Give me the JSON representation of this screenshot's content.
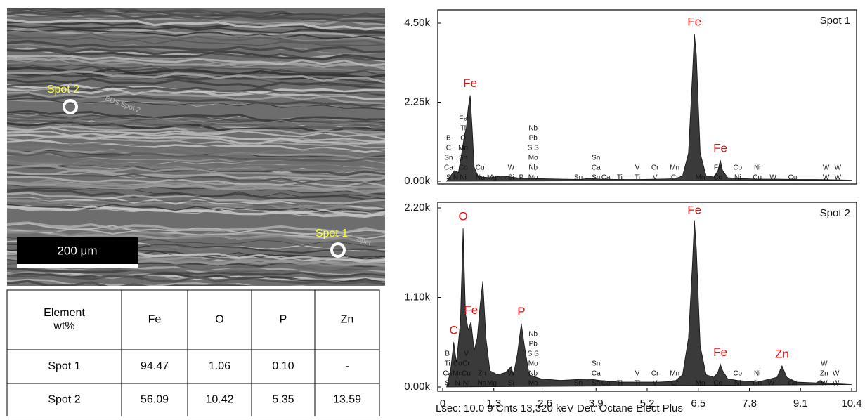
{
  "image": {
    "labels": [
      "Spot 2",
      "Spot 1"
    ],
    "faint_labels": [
      "EDS Spot 2",
      "Spot"
    ],
    "scale_bar": "200 μm"
  },
  "table": {
    "header": [
      "Element wt%",
      "Fe",
      "O",
      "P",
      "Zn"
    ],
    "rows": [
      [
        "Spot 1",
        "94.47",
        "1.06",
        "0.10",
        "-"
      ],
      [
        "Spot 2",
        "56.09",
        "10.42",
        "5.35",
        "13.59"
      ]
    ]
  },
  "footer": "Lsec: 10.0  9 Cnts  13,320 keV  Det: Octane Elect Plus",
  "chart_data": [
    {
      "type": "area",
      "title": "Spot 1",
      "color": "#3a3a3a",
      "x": [
        0.1,
        0.2,
        0.3,
        0.4,
        0.5,
        0.55,
        0.6,
        0.65,
        0.7,
        0.75,
        0.8,
        0.9,
        1.0,
        1.2,
        1.5,
        1.75,
        2.0,
        2.3,
        2.6,
        3.0,
        3.5,
        3.7,
        4.0,
        4.5,
        5.0,
        5.5,
        5.9,
        6.1,
        6.25,
        6.35,
        6.4,
        6.45,
        6.55,
        6.7,
        6.9,
        7.0,
        7.06,
        7.12,
        7.25,
        7.5,
        8.0,
        8.5,
        9.0,
        9.5,
        10.0,
        10.4
      ],
      "values": [
        0,
        150,
        300,
        250,
        900,
        1300,
        1500,
        2100,
        2450,
        1500,
        400,
        150,
        120,
        100,
        150,
        120,
        80,
        80,
        70,
        60,
        50,
        80,
        60,
        50,
        50,
        60,
        70,
        150,
        800,
        3000,
        4200,
        3600,
        800,
        150,
        120,
        300,
        600,
        300,
        100,
        80,
        60,
        60,
        50,
        50,
        40,
        30
      ],
      "xlim": [
        0,
        10.4
      ],
      "ylim": [
        0,
        4500
      ],
      "yticks": [
        {
          "value": 0,
          "label": "0.00k"
        },
        {
          "value": 2250,
          "label": "2.25k"
        },
        {
          "value": 4500,
          "label": "4.50k"
        }
      ],
      "peak_labels": [
        {
          "text": "Fe",
          "x": 0.7
        },
        {
          "text": "Fe",
          "x": 6.4
        },
        {
          "text": "Fe",
          "x": 7.06
        }
      ],
      "annotations": [
        {
          "x": 0.15,
          "labels": [
            "S",
            "Ca",
            "Sn",
            "C",
            "B"
          ]
        },
        {
          "x": 0.33,
          "labels": [
            "N"
          ]
        },
        {
          "x": 0.52,
          "labels": [
            "Ni",
            "Co",
            "Sn",
            "Mn",
            "O",
            "Ti",
            "Fe"
          ]
        },
        {
          "x": 0.95,
          "labels": [
            "Na",
            "Cu"
          ]
        },
        {
          "x": 1.25,
          "labels": [
            "Mg"
          ]
        },
        {
          "x": 1.74,
          "labels": [
            "Si",
            "W"
          ]
        },
        {
          "x": 2.0,
          "labels": [
            "P"
          ]
        },
        {
          "x": 2.3,
          "labels": [
            "Mo",
            "Nb",
            "Mo",
            "S S",
            "Pb",
            "Nb"
          ]
        },
        {
          "x": 3.45,
          "labels": [
            "Sn"
          ]
        },
        {
          "x": 3.9,
          "labels": [
            "Sn",
            "Ca",
            "Sn"
          ]
        },
        {
          "x": 4.15,
          "labels": [
            "Ca"
          ]
        },
        {
          "x": 4.5,
          "labels": [
            "Ti"
          ]
        },
        {
          "x": 4.95,
          "labels": [
            "Ti",
            "V"
          ]
        },
        {
          "x": 5.4,
          "labels": [
            "V",
            "Cr"
          ]
        },
        {
          "x": 5.9,
          "labels": [
            "Cr",
            "Mn"
          ]
        },
        {
          "x": 6.55,
          "labels": [
            "Mn"
          ]
        },
        {
          "x": 7.0,
          "labels": [
            "Co",
            "Fe"
          ]
        },
        {
          "x": 7.5,
          "labels": [
            "Ni",
            "Co"
          ]
        },
        {
          "x": 8.0,
          "labels": [
            "Cu",
            "Ni"
          ]
        },
        {
          "x": 8.4,
          "labels": [
            "W"
          ]
        },
        {
          "x": 8.9,
          "labels": [
            "Cu"
          ]
        },
        {
          "x": 9.75,
          "labels": [
            "W",
            "W"
          ]
        },
        {
          "x": 10.05,
          "labels": [
            "W",
            "W"
          ]
        }
      ]
    },
    {
      "type": "area",
      "title": "Spot 2",
      "color": "#3a3a3a",
      "x": [
        0.1,
        0.2,
        0.28,
        0.35,
        0.45,
        0.52,
        0.58,
        0.65,
        0.72,
        0.8,
        0.88,
        0.95,
        1.02,
        1.1,
        1.2,
        1.4,
        1.6,
        1.74,
        1.8,
        1.9,
        2.0,
        2.08,
        2.2,
        2.5,
        3.0,
        3.7,
        4.0,
        4.5,
        5.0,
        5.5,
        5.9,
        6.1,
        6.25,
        6.35,
        6.4,
        6.45,
        6.55,
        6.7,
        6.9,
        7.0,
        7.06,
        7.12,
        7.25,
        7.5,
        8.0,
        8.5,
        8.63,
        8.75,
        9.0,
        9.5,
        9.6,
        9.7,
        10.0,
        10.4
      ],
      "values": [
        0,
        200,
        550,
        300,
        800,
        1950,
        900,
        700,
        800,
        450,
        600,
        1000,
        1300,
        600,
        200,
        150,
        180,
        250,
        150,
        400,
        780,
        500,
        150,
        100,
        80,
        100,
        80,
        60,
        60,
        60,
        70,
        150,
        600,
        1500,
        2050,
        1700,
        500,
        150,
        120,
        180,
        280,
        200,
        100,
        80,
        60,
        120,
        260,
        120,
        60,
        50,
        80,
        50,
        40,
        30
      ],
      "xlim": [
        0,
        10.4
      ],
      "ylim": [
        0,
        2200
      ],
      "yticks": [
        {
          "value": 0,
          "label": "0.00k"
        },
        {
          "value": 1100,
          "label": "1.10k"
        },
        {
          "value": 2200,
          "label": "2.20k"
        }
      ],
      "xticks": [
        0,
        1.3,
        2.6,
        3.9,
        5.2,
        6.5,
        7.8,
        9.1,
        10.4
      ],
      "peak_labels": [
        {
          "text": "C",
          "x": 0.28
        },
        {
          "text": "O",
          "x": 0.52
        },
        {
          "text": "Fe",
          "x": 0.72
        },
        {
          "text": "P",
          "x": 2.0
        },
        {
          "text": "Fe",
          "x": 6.4
        },
        {
          "text": "Fe",
          "x": 7.06
        },
        {
          "text": "Zn",
          "x": 8.63
        }
      ],
      "annotations": [
        {
          "x": 0.12,
          "labels": [
            "S",
            "Ca",
            "Ti",
            "B"
          ]
        },
        {
          "x": 0.38,
          "labels": [
            "N",
            "Mn",
            "Co"
          ]
        },
        {
          "x": 0.6,
          "labels": [
            "Ni",
            "Cu",
            "Cr",
            "V"
          ]
        },
        {
          "x": 1.0,
          "labels": [
            "Na",
            "Zn"
          ]
        },
        {
          "x": 1.25,
          "labels": [
            "Mg"
          ]
        },
        {
          "x": 1.74,
          "labels": [
            "Si",
            "W"
          ]
        },
        {
          "x": 2.3,
          "labels": [
            "Mo",
            "Nb",
            "Mo",
            "S S",
            "Pb",
            "Nb"
          ]
        },
        {
          "x": 3.45,
          "labels": [
            "Sn"
          ]
        },
        {
          "x": 3.9,
          "labels": [
            "Sn",
            "Ca",
            "Sn"
          ]
        },
        {
          "x": 4.15,
          "labels": [
            "Ca"
          ]
        },
        {
          "x": 4.5,
          "labels": [
            "Ti"
          ]
        },
        {
          "x": 4.95,
          "labels": [
            "Ti",
            "V"
          ]
        },
        {
          "x": 5.4,
          "labels": [
            "V",
            "Cr"
          ]
        },
        {
          "x": 5.9,
          "labels": [
            "Cr",
            "Mn"
          ]
        },
        {
          "x": 6.55,
          "labels": [
            "Mn"
          ]
        },
        {
          "x": 7.0,
          "labels": [
            "Co"
          ]
        },
        {
          "x": 7.5,
          "labels": [
            "Ni",
            "Co"
          ]
        },
        {
          "x": 8.0,
          "labels": [
            "Cu",
            "Ni"
          ]
        },
        {
          "x": 8.35,
          "labels": [
            "W"
          ]
        },
        {
          "x": 8.9,
          "labels": [
            "Cu"
          ]
        },
        {
          "x": 9.7,
          "labels": [
            "W",
            "Zn",
            "W"
          ]
        },
        {
          "x": 10.0,
          "labels": [
            "W",
            "W"
          ]
        }
      ]
    }
  ]
}
